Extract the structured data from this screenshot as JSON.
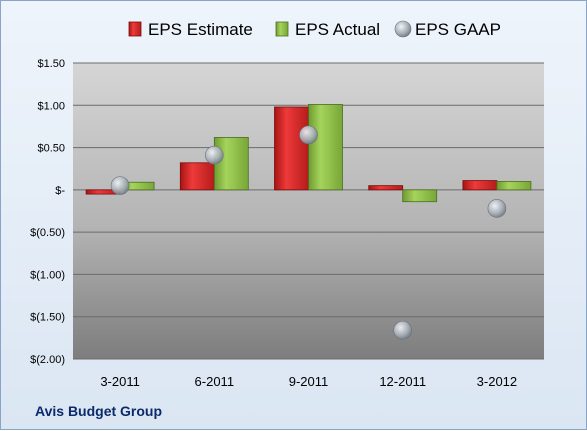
{
  "company": "Avis Budget Group",
  "colors": {
    "estimate": "#d42a2a",
    "actual": "#8cc046",
    "gaap": "#9ea7b1"
  },
  "chart_data": {
    "type": "bar",
    "categories": [
      "3-2011",
      "6-2011",
      "9-2011",
      "12-2011",
      "3-2012"
    ],
    "series": [
      {
        "name": "EPS Estimate",
        "kind": "bar",
        "values": [
          -0.05,
          0.32,
          0.98,
          0.05,
          0.11
        ]
      },
      {
        "name": "EPS Actual",
        "kind": "bar",
        "values": [
          0.09,
          0.62,
          1.01,
          -0.14,
          0.1
        ]
      },
      {
        "name": "EPS GAAP",
        "kind": "marker",
        "values": [
          0.05,
          0.41,
          0.65,
          -1.66,
          -0.22
        ]
      }
    ],
    "ylim": [
      -2.0,
      1.5
    ],
    "yticks": [
      1.5,
      1.0,
      0.5,
      0,
      -0.5,
      -1.0,
      -1.5,
      -2.0
    ],
    "ytick_labels": [
      "$1.50",
      "$1.00",
      "$0.50",
      "$-",
      "$(0.50)",
      "$(1.00)",
      "$(1.50)",
      "$(2.00)"
    ],
    "legend_position": "top",
    "grid": true
  }
}
